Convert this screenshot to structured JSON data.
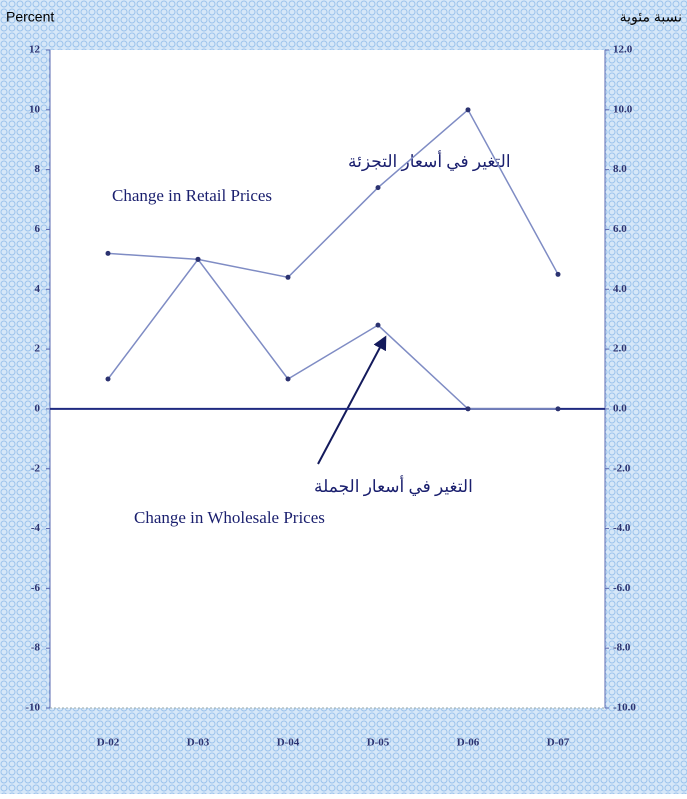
{
  "chart_data": {
    "type": "line",
    "y_label_left": "Percent",
    "y_label_right": "نسبة مئوية",
    "categories": [
      "D-02",
      "D-03",
      "D-04",
      "D-05",
      "D-06",
      "D-07"
    ],
    "series": [
      {
        "name": "Change in Retail Prices",
        "name_ar": "التغير في أسعار التجزئة",
        "color": "#7f8cc4",
        "values": [
          5.2,
          5.0,
          4.4,
          7.4,
          10.0,
          4.5
        ]
      },
      {
        "name": "Change in Wholesale Prices",
        "name_ar": "التغير في أسعار الجملة",
        "color": "#7f8cc4",
        "values": [
          1.0,
          5.0,
          1.0,
          2.8,
          0.0,
          0.0
        ]
      }
    ],
    "ylim": [
      -10,
      12
    ],
    "yticks": [
      12,
      10,
      8,
      6,
      4,
      2,
      0,
      -2,
      -4,
      -6,
      -8,
      -10
    ],
    "y2lim": [
      -10,
      12
    ],
    "y2ticks": [
      {
        "value": 12,
        "label": "12.0"
      },
      {
        "value": 10,
        "label": "10.0"
      },
      {
        "value": 8,
        "label": "8.0"
      },
      {
        "value": 6,
        "label": "6.0"
      },
      {
        "value": 4,
        "label": "4.0"
      },
      {
        "value": 2,
        "label": "2.0"
      },
      {
        "value": 0,
        "label": "0.0"
      },
      {
        "value": -2,
        "label": "-2.0"
      },
      {
        "value": -4,
        "label": "-4.0"
      },
      {
        "value": -6,
        "label": "-6.0"
      },
      {
        "value": -8,
        "label": "-8.0"
      },
      {
        "value": -10,
        "label": "-10.0"
      }
    ],
    "zero_line_color": "#1f2a80"
  }
}
